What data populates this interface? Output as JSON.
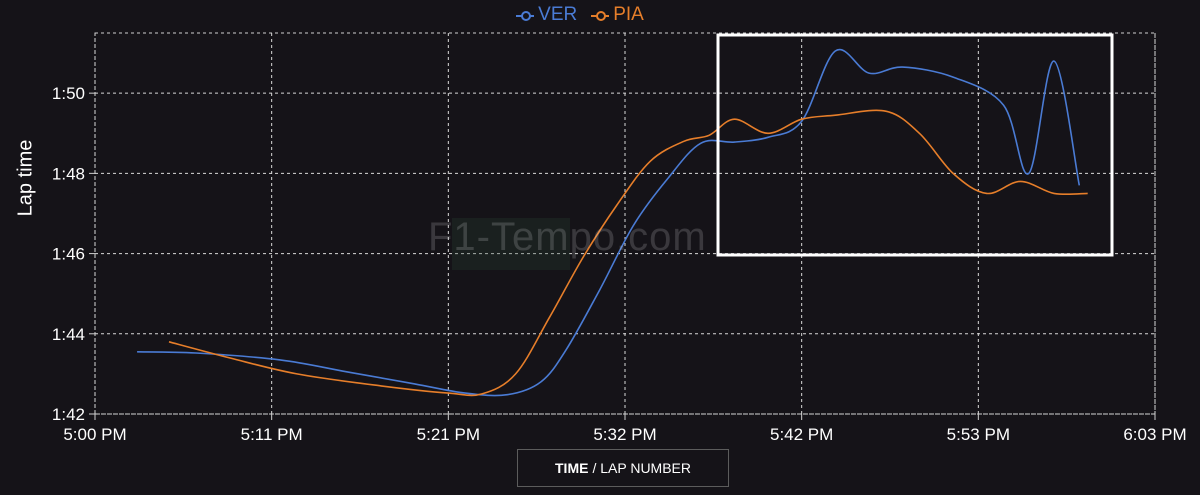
{
  "legend": [
    {
      "label": "VER",
      "color": "#4a7bd4"
    },
    {
      "label": "PIA",
      "color": "#e67e2a"
    }
  ],
  "ylabel": "Lap time",
  "xaxis_button": {
    "bold": "TIME",
    "rest": "/ LAP NUMBER"
  },
  "watermark": "F1-Tempo.com",
  "highlight_color": "#ffffff",
  "chart_data": {
    "type": "line",
    "xlabel": "TIME / LAP NUMBER",
    "ylabel": "Lap time",
    "x_ticks": [
      "5:00 PM",
      "5:11 PM",
      "5:21 PM",
      "5:32 PM",
      "5:42 PM",
      "5:53 PM",
      "6:03 PM"
    ],
    "x_range_minutes": [
      0,
      63
    ],
    "y_ticks": [
      "1:42",
      "1:44",
      "1:46",
      "1:48",
      "1:50"
    ],
    "ylim_seconds": [
      102,
      111.5
    ],
    "grid": true,
    "legend_position": "top-center",
    "series": [
      {
        "name": "VER",
        "color": "#4a7bd4",
        "points": [
          [
            2.5,
            103.55
          ],
          [
            6,
            103.52
          ],
          [
            11,
            103.35
          ],
          [
            15,
            103.05
          ],
          [
            19,
            102.75
          ],
          [
            22,
            102.52
          ],
          [
            24.5,
            102.48
          ],
          [
            26.5,
            102.8
          ],
          [
            28,
            103.6
          ],
          [
            30,
            105.1
          ],
          [
            32,
            106.7
          ],
          [
            34,
            107.85
          ],
          [
            36,
            108.75
          ],
          [
            38,
            108.78
          ],
          [
            40,
            108.9
          ],
          [
            42,
            109.3
          ],
          [
            44,
            111.05
          ],
          [
            46,
            110.5
          ],
          [
            48,
            110.65
          ],
          [
            51,
            110.4
          ],
          [
            54,
            109.7
          ],
          [
            55.5,
            108.0
          ],
          [
            57,
            110.8
          ],
          [
            58.5,
            107.7
          ]
        ]
      },
      {
        "name": "PIA",
        "color": "#e67e2a",
        "points": [
          [
            4.4,
            103.8
          ],
          [
            8,
            103.4
          ],
          [
            12,
            103.0
          ],
          [
            17,
            102.7
          ],
          [
            21,
            102.52
          ],
          [
            23,
            102.5
          ],
          [
            25,
            103.0
          ],
          [
            27,
            104.4
          ],
          [
            29,
            105.9
          ],
          [
            31,
            107.2
          ],
          [
            33,
            108.3
          ],
          [
            35,
            108.8
          ],
          [
            36.5,
            108.95
          ],
          [
            38,
            109.35
          ],
          [
            40,
            109.0
          ],
          [
            42,
            109.35
          ],
          [
            44,
            109.45
          ],
          [
            47,
            109.55
          ],
          [
            49,
            109.0
          ],
          [
            51,
            108.0
          ],
          [
            53,
            107.5
          ],
          [
            55,
            107.8
          ],
          [
            57,
            107.5
          ],
          [
            59,
            107.5
          ]
        ]
      }
    ]
  }
}
